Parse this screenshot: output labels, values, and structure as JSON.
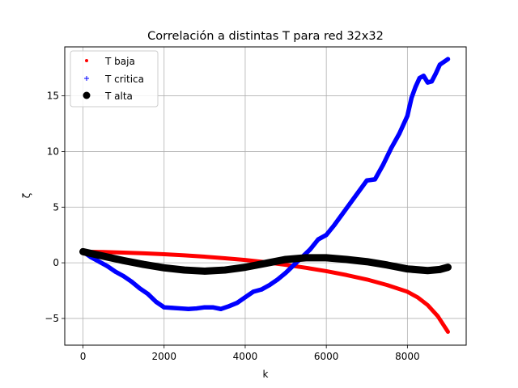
{
  "chart_data": {
    "type": "scatter",
    "title": "Correlación a distintas T para red 32x32",
    "xlabel": "k",
    "ylabel": "ζ",
    "xlim": [
      -450,
      9450
    ],
    "ylim": [
      -7.4,
      19.4
    ],
    "xticks": [
      0,
      2000,
      4000,
      6000,
      8000
    ],
    "yticks": [
      -5,
      0,
      5,
      10,
      15
    ],
    "xtick_labels": [
      "0",
      "2000",
      "4000",
      "6000",
      "8000"
    ],
    "ytick_labels": [
      "−5",
      "0",
      "5",
      "10",
      "15"
    ],
    "grid": true,
    "legend_position": "top-left",
    "series": [
      {
        "name": "T baja",
        "marker": "dot",
        "color": "#ff0000",
        "x": [
          0,
          500,
          1000,
          1500,
          2000,
          2500,
          3000,
          3500,
          4000,
          4500,
          5000,
          5500,
          6000,
          6500,
          7000,
          7500,
          8000,
          8250,
          8500,
          8750,
          9000
        ],
        "y": [
          1.0,
          0.97,
          0.92,
          0.85,
          0.77,
          0.67,
          0.55,
          0.41,
          0.25,
          0.05,
          -0.18,
          -0.45,
          -0.75,
          -1.1,
          -1.5,
          -2.0,
          -2.6,
          -3.1,
          -3.8,
          -4.8,
          -6.2
        ]
      },
      {
        "name": "T critica",
        "marker": "plus",
        "color": "#0000ff",
        "x": [
          0,
          200,
          400,
          600,
          800,
          1000,
          1200,
          1400,
          1600,
          1800,
          2000,
          2200,
          2400,
          2600,
          2800,
          3000,
          3200,
          3400,
          3600,
          3800,
          4000,
          4200,
          4400,
          4600,
          4800,
          5000,
          5200,
          5400,
          5600,
          5800,
          6000,
          6200,
          6400,
          6600,
          6800,
          7000,
          7200,
          7400,
          7600,
          7800,
          8000,
          8100,
          8200,
          8300,
          8400,
          8500,
          8600,
          8700,
          8800,
          9000
        ],
        "y": [
          1.0,
          0.5,
          0.1,
          -0.3,
          -0.8,
          -1.2,
          -1.7,
          -2.3,
          -2.8,
          -3.5,
          -4.0,
          -4.05,
          -4.1,
          -4.15,
          -4.1,
          -4.0,
          -4.0,
          -4.15,
          -3.9,
          -3.6,
          -3.1,
          -2.6,
          -2.4,
          -2.0,
          -1.5,
          -0.9,
          -0.2,
          0.5,
          1.2,
          2.1,
          2.5,
          3.4,
          4.4,
          5.4,
          6.4,
          7.4,
          7.5,
          8.8,
          10.3,
          11.6,
          13.2,
          14.8,
          15.8,
          16.6,
          16.8,
          16.2,
          16.3,
          17.0,
          17.8,
          18.3
        ]
      },
      {
        "name": "T alta",
        "marker": "circle",
        "color": "#000000",
        "x": [
          0,
          500,
          1000,
          1500,
          2000,
          2500,
          3000,
          3500,
          4000,
          4500,
          5000,
          5500,
          6000,
          6500,
          7000,
          7500,
          8000,
          8500,
          8800,
          9000
        ],
        "y": [
          1.0,
          0.6,
          0.2,
          -0.15,
          -0.45,
          -0.65,
          -0.75,
          -0.65,
          -0.4,
          -0.05,
          0.3,
          0.45,
          0.45,
          0.3,
          0.1,
          -0.2,
          -0.55,
          -0.7,
          -0.6,
          -0.4
        ]
      }
    ]
  }
}
